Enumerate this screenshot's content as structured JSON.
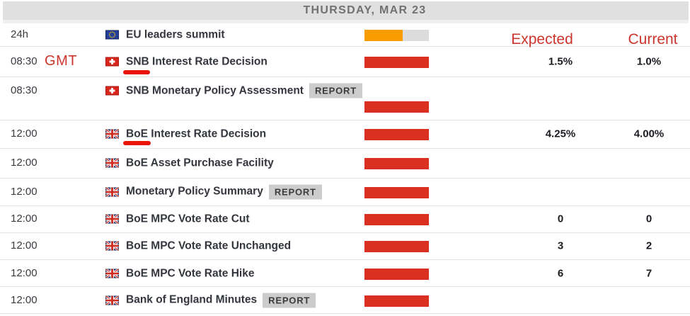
{
  "header": {
    "title": "THURSDAY, MAR 23"
  },
  "badge_label": "REPORT",
  "annotations": {
    "gmt_label": "GMT",
    "expected_label": "Expected",
    "current_label": "Current",
    "underlined_terms": [
      "SNB",
      "BoE"
    ]
  },
  "colors": {
    "impact_high": "#da3022",
    "impact_medium": "#f99c00",
    "impact_track": "#dcdcdc",
    "annotation_red": "#cd352c",
    "marker_red": "#ea1404",
    "header_bg": "#e0e0e0",
    "header_text": "#6f7173"
  },
  "rows": [
    {
      "time": "24h",
      "flag": "eu",
      "title": "EU leaders summit",
      "report": false,
      "impact": "medium",
      "expected": "",
      "current": ""
    },
    {
      "time": "08:30",
      "flag": "ch",
      "title": "SNB Interest Rate Decision",
      "report": false,
      "impact": "high",
      "expected": "1.5%",
      "current": "1.0%"
    },
    {
      "time": "08:30",
      "flag": "ch",
      "title": "SNB Monetary Policy Assessment",
      "report": true,
      "impact": "high",
      "expected": "",
      "current": ""
    },
    {
      "time": "12:00",
      "flag": "gb",
      "title": "BoE Interest Rate Decision",
      "report": false,
      "impact": "high",
      "expected": "4.25%",
      "current": "4.00%"
    },
    {
      "time": "12:00",
      "flag": "gb",
      "title": "BoE Asset Purchase Facility",
      "report": false,
      "impact": "high",
      "expected": "",
      "current": ""
    },
    {
      "time": "12:00",
      "flag": "gb",
      "title": "Monetary Policy Summary",
      "report": true,
      "impact": "high",
      "expected": "",
      "current": ""
    },
    {
      "time": "12:00",
      "flag": "gb",
      "title": "BoE MPC Vote Rate Cut",
      "report": false,
      "impact": "high",
      "expected": "0",
      "current": "0"
    },
    {
      "time": "12:00",
      "flag": "gb",
      "title": "BoE MPC Vote Rate Unchanged",
      "report": false,
      "impact": "high",
      "expected": "3",
      "current": "2"
    },
    {
      "time": "12:00",
      "flag": "gb",
      "title": "BoE MPC Vote Rate Hike",
      "report": false,
      "impact": "high",
      "expected": "6",
      "current": "7"
    },
    {
      "time": "12:00",
      "flag": "gb",
      "title": "Bank of England Minutes",
      "report": true,
      "impact": "high",
      "expected": "",
      "current": ""
    }
  ]
}
